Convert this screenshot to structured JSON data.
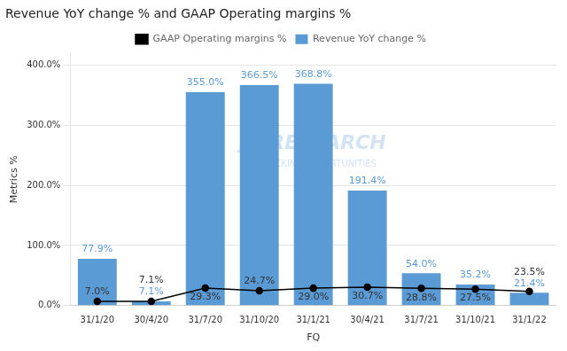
{
  "chart_data": {
    "type": "bar",
    "title": "Revenue YoY change % and GAAP Operating margins %",
    "xlabel": "FQ",
    "ylabel": "Metrics %",
    "categories": [
      "31/1/20",
      "30/4/20",
      "31/7/20",
      "31/10/20",
      "31/1/21",
      "30/4/21",
      "31/7/21",
      "31/10/21",
      "31/1/22"
    ],
    "series": [
      {
        "name": "Revenue YoY change %",
        "type": "bar",
        "color": "#5B9BD5",
        "values": [
          77.9,
          7.1,
          355.0,
          366.5,
          368.8,
          191.4,
          54.0,
          35.2,
          21.4
        ],
        "value_labels": [
          "77.9%",
          "7.1%",
          "355.0%",
          "366.5%",
          "368.8%",
          "191.4%",
          "54.0%",
          "35.2%",
          "21.4%"
        ]
      },
      {
        "name": "GAAP Operating margins %",
        "type": "line",
        "color": "#000000",
        "marker": "circle",
        "values": [
          7.0,
          7.1,
          29.3,
          24.7,
          29.0,
          30.7,
          28.8,
          27.5,
          23.5
        ],
        "value_labels": [
          "7.0%",
          "7.1%",
          "29.3%",
          "24.7%",
          "29.0%",
          "30.7%",
          "28.8%",
          "27.5%",
          "23.5%"
        ]
      }
    ],
    "ylim": [
      0,
      420
    ],
    "yticks": [
      {
        "value": 0,
        "label": "0.0%"
      },
      {
        "value": 100,
        "label": "100.0%"
      },
      {
        "value": 200,
        "label": "200.0%"
      },
      {
        "value": 300,
        "label": "300.0%"
      },
      {
        "value": 400,
        "label": "400.0%"
      }
    ],
    "grid": true,
    "legend": "top",
    "data_labels": true,
    "annotations": [
      "JR RESEARCH",
      "UNLOCKING OPPORTUNITIES"
    ]
  }
}
